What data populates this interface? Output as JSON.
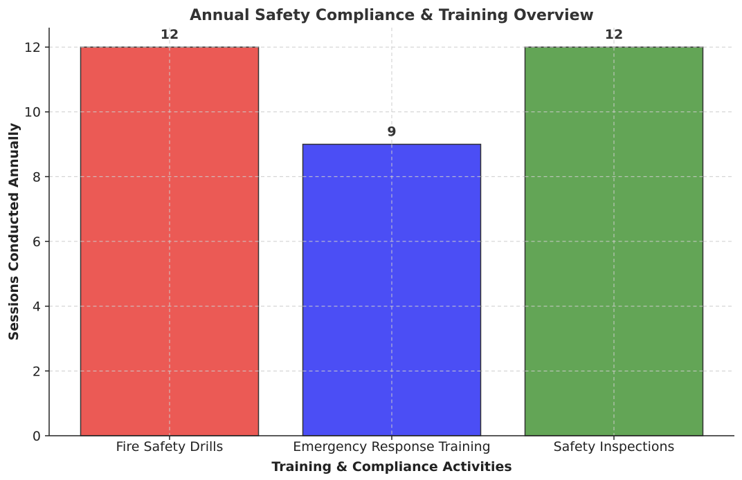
{
  "chart_data": {
    "type": "bar",
    "title": "Annual Safety Compliance & Training Overview",
    "xlabel": "Training & Compliance Activities",
    "ylabel": "Sessions Conducted Annually",
    "categories": [
      "Fire Safety Drills",
      "Emergency Response Training",
      "Safety Inspections"
    ],
    "values": [
      12,
      9,
      12
    ],
    "data_labels": [
      "12",
      "9",
      "12"
    ],
    "colors": [
      "#eb5a55",
      "#4b4ef5",
      "#63a556"
    ],
    "bar_edge_color": "#333333",
    "ylim": [
      0,
      12.6
    ],
    "yticks": [
      0,
      2,
      4,
      6,
      8,
      10,
      12
    ],
    "ytick_labels": [
      "0",
      "2",
      "4",
      "6",
      "8",
      "10",
      "12"
    ],
    "grid": true,
    "legend": null
  }
}
